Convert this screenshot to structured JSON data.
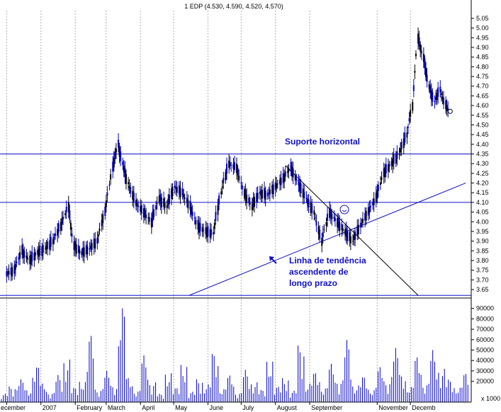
{
  "chart_data": [
    {
      "type": "ohlc",
      "title": "1 EDP (4.530, 4.590, 4.520, 4.570)",
      "y_ticks": [
        "3.65",
        "3.70",
        "3.75",
        "3.80",
        "3.85",
        "3.90",
        "3.95",
        "4.00",
        "4.05",
        "4.10",
        "4.15",
        "4.20",
        "4.25",
        "4.30",
        "4.35",
        "4.40",
        "4.45",
        "4.50",
        "4.55",
        "4.60",
        "4.65",
        "4.70",
        "4.75",
        "4.80",
        "4.85",
        "4.90",
        "4.95",
        "5.00",
        "5.05"
      ],
      "ylim": [
        3.61,
        5.09
      ],
      "x_labels": [
        "ecember",
        "2007",
        "February",
        "March",
        "April",
        "May",
        "June",
        "July",
        "August",
        "September",
        "November",
        "Decemb"
      ],
      "close_series": [
        [
          "2006-12-01",
          3.73
        ],
        [
          "2006-12-08",
          3.75
        ],
        [
          "2006-12-15",
          3.85
        ],
        [
          "2006-12-22",
          3.8
        ],
        [
          "2006-12-29",
          3.84
        ],
        [
          "2007-01-05",
          3.86
        ],
        [
          "2007-01-12",
          3.9
        ],
        [
          "2007-01-19",
          3.98
        ],
        [
          "2007-01-26",
          4.08
        ],
        [
          "2007-01-31",
          3.88
        ],
        [
          "2007-02-07",
          3.84
        ],
        [
          "2007-02-14",
          3.86
        ],
        [
          "2007-02-21",
          3.9
        ],
        [
          "2007-02-28",
          4.05
        ],
        [
          "2007-03-07",
          4.28
        ],
        [
          "2007-03-12",
          4.4
        ],
        [
          "2007-03-16",
          4.3
        ],
        [
          "2007-03-21",
          4.2
        ],
        [
          "2007-03-28",
          4.1
        ],
        [
          "2007-04-04",
          4.05
        ],
        [
          "2007-04-11",
          4.0
        ],
        [
          "2007-04-18",
          4.12
        ],
        [
          "2007-04-25",
          4.08
        ],
        [
          "2007-05-02",
          4.18
        ],
        [
          "2007-05-09",
          4.15
        ],
        [
          "2007-05-16",
          4.08
        ],
        [
          "2007-05-23",
          3.98
        ],
        [
          "2007-05-30",
          3.95
        ],
        [
          "2007-06-06",
          3.94
        ],
        [
          "2007-06-13",
          4.15
        ],
        [
          "2007-06-20",
          4.3
        ],
        [
          "2007-06-27",
          4.28
        ],
        [
          "2007-07-04",
          4.15
        ],
        [
          "2007-07-11",
          4.08
        ],
        [
          "2007-07-18",
          4.15
        ],
        [
          "2007-07-25",
          4.14
        ],
        [
          "2007-08-01",
          4.18
        ],
        [
          "2007-08-08",
          4.22
        ],
        [
          "2007-08-15",
          4.28
        ],
        [
          "2007-08-22",
          4.2
        ],
        [
          "2007-08-29",
          4.12
        ],
        [
          "2007-09-05",
          4.05
        ],
        [
          "2007-09-12",
          3.9
        ],
        [
          "2007-09-19",
          4.05
        ],
        [
          "2007-09-26",
          4.0
        ],
        [
          "2007-10-03",
          3.95
        ],
        [
          "2007-10-10",
          3.9
        ],
        [
          "2007-10-17",
          3.98
        ],
        [
          "2007-10-24",
          4.05
        ],
        [
          "2007-10-31",
          4.12
        ],
        [
          "2007-11-07",
          4.25
        ],
        [
          "2007-11-14",
          4.3
        ],
        [
          "2007-11-21",
          4.35
        ],
        [
          "2007-11-28",
          4.45
        ],
        [
          "2007-12-03",
          4.6
        ],
        [
          "2007-12-08",
          4.95
        ],
        [
          "2007-12-13",
          4.85
        ],
        [
          "2007-12-18",
          4.7
        ],
        [
          "2007-12-23",
          4.62
        ],
        [
          "2007-12-28",
          4.68
        ],
        [
          "2008-01-02",
          4.6
        ],
        [
          "2008-01-06",
          4.57
        ]
      ],
      "horizontal_levels": [
        4.35,
        4.1,
        3.62
      ],
      "trendlines": [
        {
          "from": [
            "2007-05-15",
            3.62
          ],
          "to": [
            "2008-01-20",
            4.2
          ]
        },
        {
          "from": [
            "2007-08-10",
            4.29
          ],
          "to": [
            "2007-12-08",
            3.62
          ]
        }
      ],
      "annotations": [
        "Suporte horizontal",
        "Linha de tendência",
        "ascendente de",
        "longo prazo"
      ]
    },
    {
      "type": "bar",
      "y_ticks": [
        "20000",
        "30000",
        "40000",
        "50000",
        "60000",
        "70000",
        "80000",
        "90000"
      ],
      "ylim": [
        0,
        100000
      ],
      "y_unit_label": "x 1000",
      "volume_levels": [
        8000,
        15000,
        22000,
        12000,
        35000,
        18000,
        9000,
        26000,
        41000,
        14000,
        20000,
        65000,
        12000,
        30000,
        16000,
        92000,
        24000,
        11000,
        45000,
        19000,
        8000,
        28000,
        14000,
        36000,
        10000,
        22000,
        17000,
        48000,
        13000,
        26000,
        9000,
        31000,
        19000,
        12000,
        40000,
        15000,
        23000,
        11000,
        55000,
        18000,
        29000,
        14000,
        37000,
        21000,
        60000,
        16000,
        25000,
        12000,
        34000,
        20000,
        52000,
        27000,
        15000,
        44000,
        18000,
        50000,
        32000,
        22000,
        14000,
        28000
      ]
    }
  ]
}
